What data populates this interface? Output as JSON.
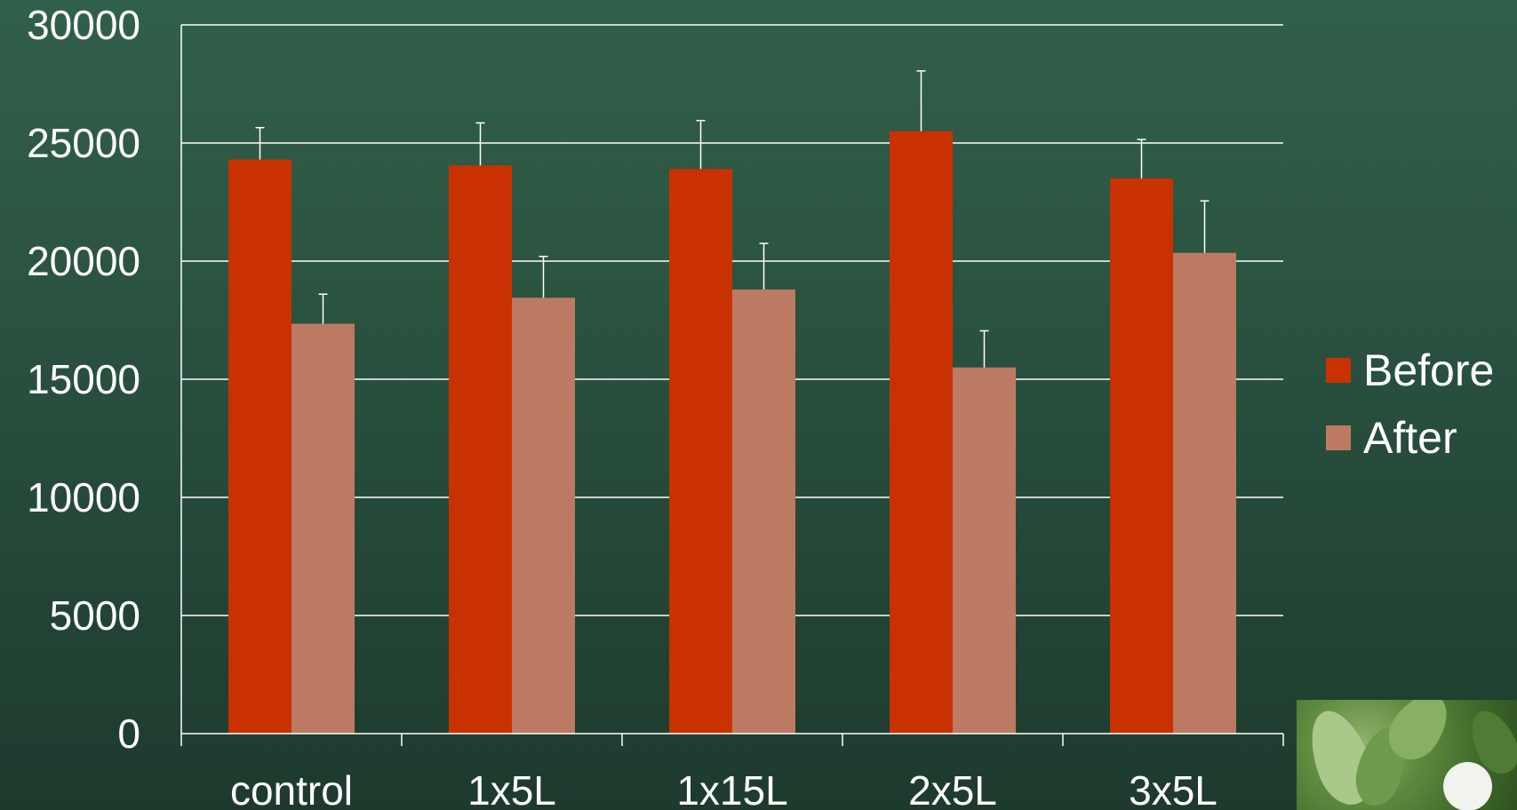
{
  "chart_data": {
    "type": "bar",
    "categories": [
      "control",
      "1x5L",
      "1x15L",
      "2x5L",
      "3x5L"
    ],
    "series": [
      {
        "name": "Before",
        "color": "#c93200",
        "values": [
          24300,
          24050,
          23900,
          25500,
          23500
        ],
        "error": [
          1350,
          1800,
          2050,
          2550,
          1650
        ]
      },
      {
        "name": "After",
        "color": "#bd7a62",
        "values": [
          17350,
          18450,
          18800,
          15500,
          20350
        ],
        "error": [
          1250,
          1750,
          1950,
          1550,
          2200
        ]
      }
    ],
    "ylim": [
      0,
      30000
    ],
    "yticks": [
      0,
      5000,
      10000,
      15000,
      20000,
      25000,
      30000
    ],
    "title": "",
    "xlabel": "",
    "ylabel": "",
    "grid": true,
    "legend_position": "right",
    "colors": {
      "gridline": "#ffffff",
      "text": "#ffffff"
    }
  },
  "legend": {
    "before": "Before",
    "after": "After"
  },
  "photo": {
    "description_icon": "plant-photo-icon"
  }
}
